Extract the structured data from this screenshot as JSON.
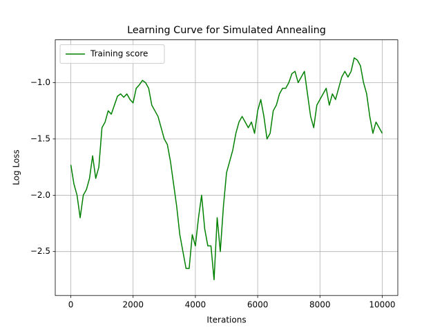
{
  "chart_data": {
    "type": "line",
    "title": "Learning Curve for Simulated Annealing",
    "xlabel": "Iterations",
    "ylabel": "Log Loss",
    "xlim": [
      -500,
      10500
    ],
    "ylim": [
      -2.89,
      -0.62
    ],
    "xticks": [
      0,
      2000,
      4000,
      6000,
      8000,
      10000
    ],
    "yticks": [
      {
        "value": -2.5,
        "label": "−2.5"
      },
      {
        "value": -2.0,
        "label": "−2.0"
      },
      {
        "value": -1.5,
        "label": "−1.5"
      },
      {
        "value": -1.0,
        "label": "−1.0"
      }
    ],
    "grid": true,
    "legend": "upper left",
    "x": [
      0,
      100,
      200,
      300,
      400,
      500,
      600,
      700,
      800,
      900,
      1000,
      1100,
      1200,
      1300,
      1400,
      1500,
      1600,
      1700,
      1800,
      1900,
      2000,
      2100,
      2200,
      2300,
      2400,
      2500,
      2600,
      2700,
      2800,
      2900,
      3000,
      3100,
      3200,
      3300,
      3400,
      3500,
      3600,
      3700,
      3800,
      3900,
      4000,
      4100,
      4200,
      4300,
      4400,
      4500,
      4600,
      4700,
      4800,
      4900,
      5000,
      5100,
      5200,
      5300,
      5400,
      5500,
      5600,
      5700,
      5800,
      5900,
      6000,
      6100,
      6200,
      6300,
      6400,
      6500,
      6600,
      6700,
      6800,
      6900,
      7000,
      7100,
      7200,
      7300,
      7400,
      7500,
      7600,
      7700,
      7800,
      7900,
      8000,
      8100,
      8200,
      8300,
      8400,
      8500,
      8600,
      8700,
      8800,
      8900,
      9000,
      9100,
      9200,
      9300,
      9400,
      9500,
      9600,
      9700,
      9800,
      9900,
      10000
    ],
    "series": [
      {
        "name": "Training score",
        "color": "#008000",
        "values": [
          -1.73,
          -1.9,
          -2.0,
          -2.2,
          -2.0,
          -1.95,
          -1.85,
          -1.65,
          -1.85,
          -1.75,
          -1.4,
          -1.35,
          -1.25,
          -1.28,
          -1.2,
          -1.12,
          -1.1,
          -1.13,
          -1.1,
          -1.15,
          -1.18,
          -1.05,
          -1.02,
          -0.98,
          -1.0,
          -1.05,
          -1.2,
          -1.25,
          -1.3,
          -1.4,
          -1.5,
          -1.55,
          -1.7,
          -1.9,
          -2.1,
          -2.35,
          -2.5,
          -2.65,
          -2.65,
          -2.35,
          -2.45,
          -2.2,
          -2.0,
          -2.3,
          -2.45,
          -2.45,
          -2.75,
          -2.2,
          -2.5,
          -2.1,
          -1.8,
          -1.7,
          -1.6,
          -1.45,
          -1.35,
          -1.3,
          -1.35,
          -1.4,
          -1.35,
          -1.45,
          -1.25,
          -1.15,
          -1.3,
          -1.5,
          -1.45,
          -1.25,
          -1.2,
          -1.1,
          -1.05,
          -1.05,
          -1.0,
          -0.92,
          -0.9,
          -1.0,
          -0.95,
          -0.9,
          -1.1,
          -1.3,
          -1.4,
          -1.2,
          -1.15,
          -1.1,
          -1.05,
          -1.2,
          -1.1,
          -1.15,
          -1.05,
          -0.95,
          -0.9,
          -0.95,
          -0.9,
          -0.78,
          -0.8,
          -0.85,
          -1.0,
          -1.1,
          -1.3,
          -1.45,
          -1.35,
          -1.4,
          -1.45
        ]
      }
    ]
  }
}
